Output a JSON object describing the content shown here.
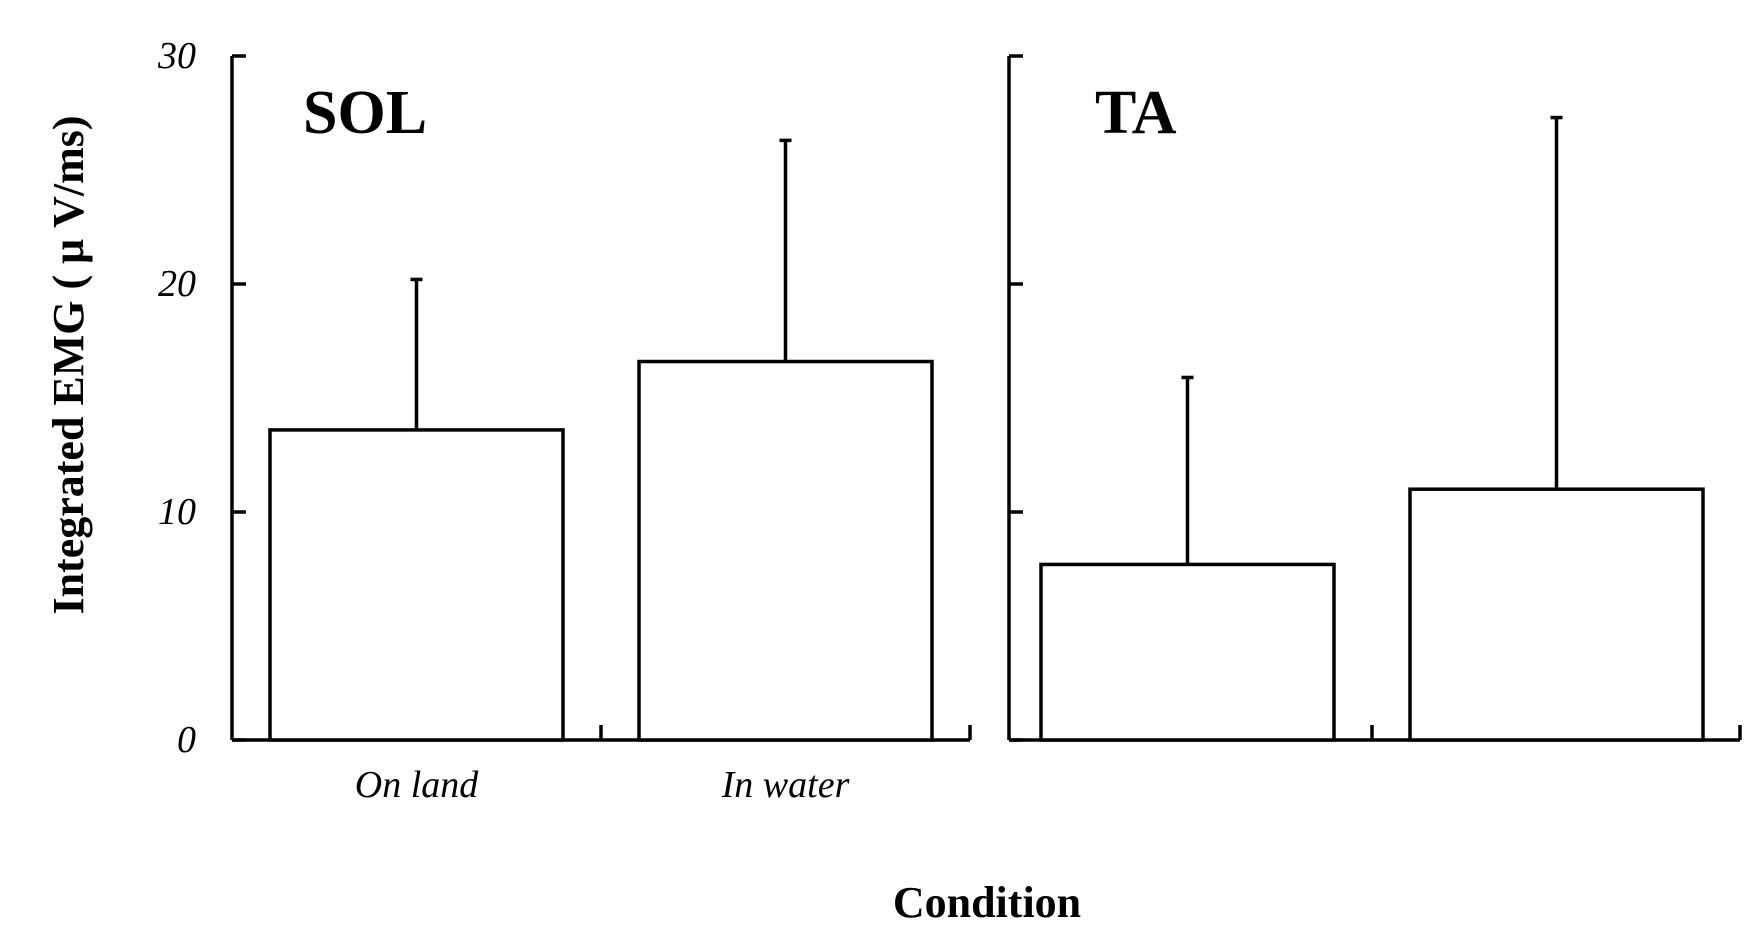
{
  "chart_data": {
    "type": "bar",
    "xlabel": "Condition",
    "ylabel": "Integrated EMG ( μ V/ms)",
    "ylim": [
      0,
      30
    ],
    "yticks": [
      0,
      10,
      20,
      30
    ],
    "categories": [
      "On land",
      "In water"
    ],
    "panels": [
      {
        "title": "SOL",
        "values": [
          13.6,
          16.6
        ],
        "errors_upper": [
          6.6,
          9.7
        ],
        "show_category_labels": true,
        "show_tick_labels": true
      },
      {
        "title": "TA",
        "values": [
          7.7,
          11.0
        ],
        "errors_upper": [
          8.2,
          16.3
        ],
        "show_category_labels": false,
        "show_tick_labels": false
      }
    ]
  }
}
